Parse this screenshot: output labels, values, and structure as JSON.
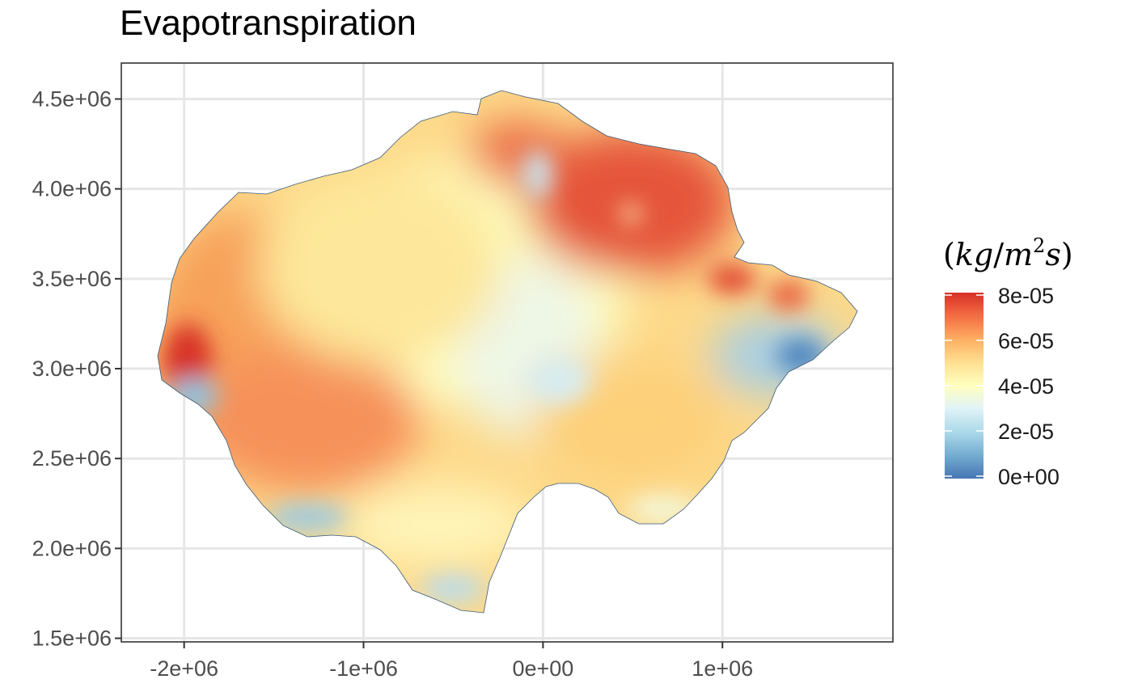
{
  "title": "Evapotranspiration",
  "map_data": {
    "type": "raster-map",
    "variable": "Evapotranspiration",
    "x_axis": {
      "ticks": [
        -2000000,
        -1000000,
        0,
        1000000
      ],
      "tick_labels": [
        "-2e+06",
        "-1e+06",
        "0e+00",
        "1e+06"
      ],
      "range": [
        -2350000,
        1950000
      ]
    },
    "y_axis": {
      "ticks": [
        1500000,
        2000000,
        2500000,
        3000000,
        3500000,
        4000000,
        4500000
      ],
      "tick_labels": [
        "1.5e+06",
        "2.0e+06",
        "2.5e+06",
        "3.0e+06",
        "3.5e+06",
        "4.0e+06",
        "4.5e+06"
      ],
      "range": [
        1480000,
        4700000
      ]
    },
    "grid": true,
    "legend": {
      "title_parts": [
        "(",
        "kg",
        "/",
        "m",
        "2",
        "s",
        ")"
      ],
      "position": "right",
      "scale_min": 0,
      "scale_max": 8e-05,
      "ticks": [
        8e-05,
        6e-05,
        4e-05,
        2e-05,
        0
      ],
      "tick_labels": [
        "8e-05",
        "6e-05",
        "4e-05",
        "2e-05",
        "0e+00"
      ],
      "colors": [
        "#d73027",
        "#f46d43",
        "#fdae61",
        "#fee090",
        "#ffffbf",
        "#e0f3f8",
        "#abd9e9",
        "#74add1",
        "#4575b4"
      ]
    }
  }
}
